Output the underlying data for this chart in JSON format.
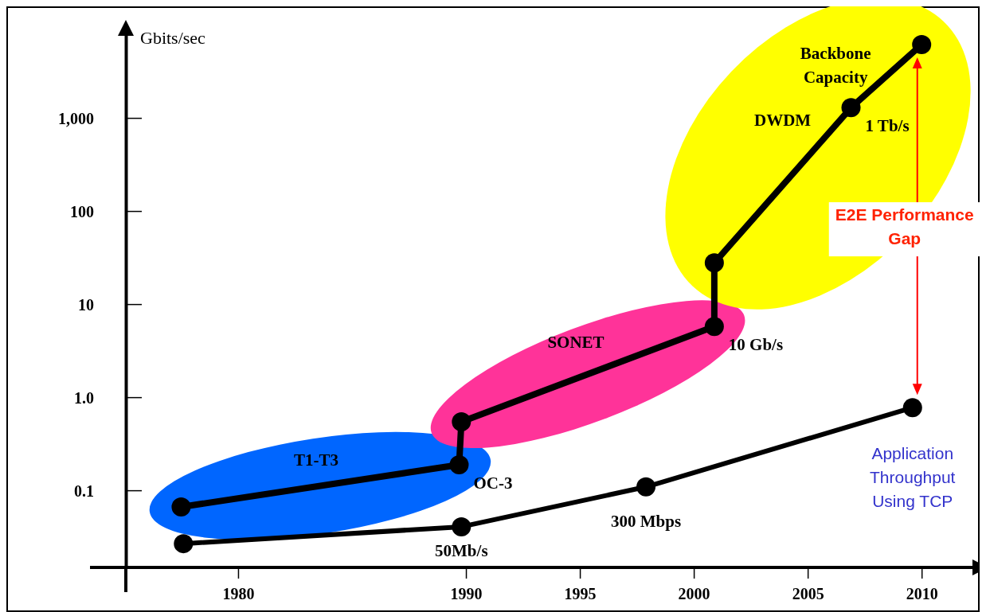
{
  "chart_data": {
    "type": "line",
    "ylabel": "Gbits/sec",
    "log": "y",
    "xlim": [
      1973.5,
      2012.3
    ],
    "ylim": [
      0.015,
      8000
    ],
    "xticks": [
      1980,
      1990,
      1995,
      2000,
      2005,
      2010
    ],
    "yticks": [
      0.1,
      {
        "value": 1,
        "label": "1.0"
      },
      10,
      100,
      {
        "value": 1000,
        "label": "1,000"
      }
    ],
    "grid": false,
    "marker": "circle",
    "line_style": "solid",
    "series": [
      {
        "name": "Backbone Capacity",
        "color": "#000000",
        "x": [
          1977.5,
          1989.7,
          1989.8,
          2000.9,
          2000.9,
          2006.9,
          2010
        ],
        "values": [
          0.067,
          0.19,
          0.55,
          5.8,
          28,
          1300,
          6200
        ]
      },
      {
        "name": "Application Throughput Using TCP",
        "color": "#000000",
        "x": [
          1977.6,
          1989.8,
          1997.9,
          2009.6
        ],
        "values": [
          0.027,
          0.041,
          0.11,
          0.78
        ]
      }
    ],
    "annotations": [
      "T1-T3",
      "SONET",
      "DWDM",
      {
        "text": "OC-3",
        "x": 1989.7,
        "y": 0.19
      },
      {
        "text": "10 Gb/s",
        "x": 2000.9,
        "y": 5.8
      },
      {
        "text": "1 Tb/s",
        "x": 2006.9,
        "y": 1300
      },
      {
        "text": "300 Mbps",
        "x": 1997.9,
        "y": 0.11
      },
      {
        "text": "50Mb/s",
        "x": 1989.8,
        "y": 0.041
      },
      "E2E Performance Gap"
    ]
  }
}
